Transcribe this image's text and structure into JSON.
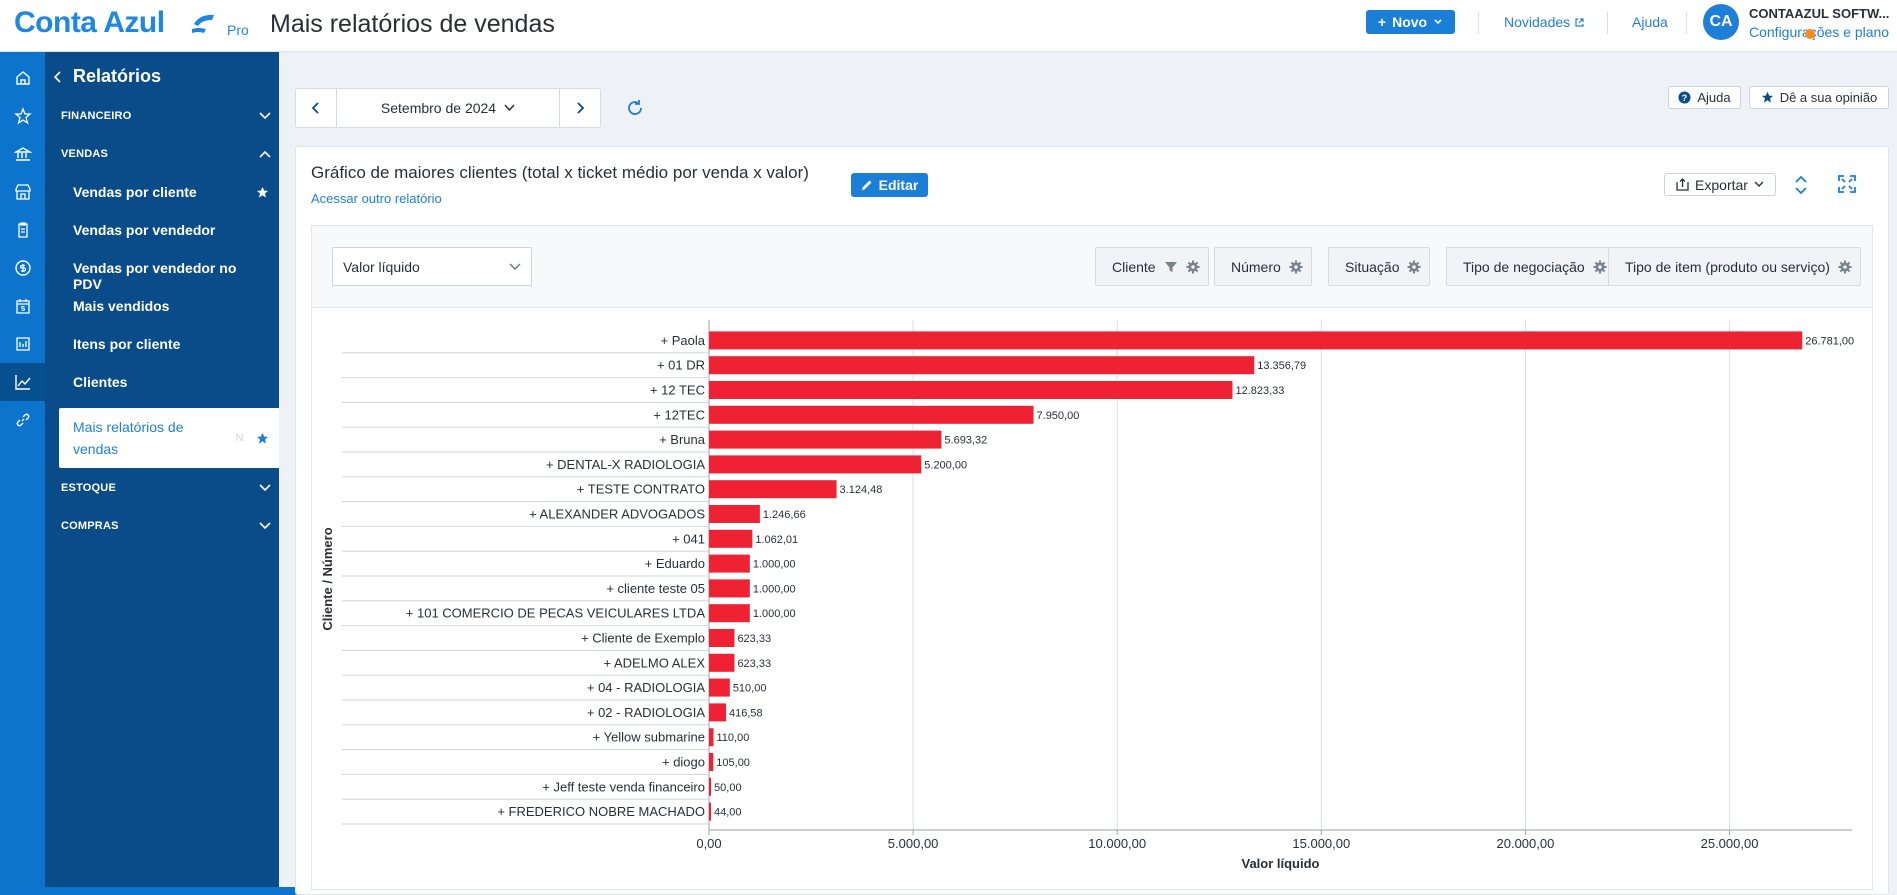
{
  "header": {
    "logo": "Conta Azul",
    "logo_badge": "Pro",
    "page_title": "Mais relatórios de vendas",
    "new_button": "Novo",
    "news_link": "Novidades",
    "help_link": "Ajuda",
    "avatar_initials": "CA",
    "company_name": "CONTAAZUL SOFTW...",
    "settings_link": "Configurações e plano"
  },
  "sidebar": {
    "back_label": "Relatórios",
    "sections": [
      {
        "label": "FINANCEIRO",
        "expanded": false
      },
      {
        "label": "VENDAS",
        "expanded": true
      },
      {
        "label": "ESTOQUE",
        "expanded": false
      },
      {
        "label": "COMPRAS",
        "expanded": false
      }
    ],
    "items": [
      {
        "label": "Vendas por cliente",
        "starred": true
      },
      {
        "label": "Vendas por vendedor"
      },
      {
        "label": "Vendas por vendedor no PDV"
      },
      {
        "label": "Mais vendidos"
      },
      {
        "label": "Itens por cliente"
      },
      {
        "label": "Clientes"
      },
      {
        "label": "Mais relatórios de vendas",
        "starred": true,
        "active": true,
        "badge": "N"
      }
    ]
  },
  "toolbar": {
    "period": "Setembro de 2024",
    "help_button": "Ajuda",
    "feedback_button": "Dê a sua opinião"
  },
  "report": {
    "title": "Gráfico de maiores clientes (total x ticket médio por venda x valor)",
    "other_report_link": "Acessar outro relatório",
    "edit_button": "Editar",
    "export_button": "Exportar",
    "metric_select": "Valor líquido",
    "filters": [
      "Cliente",
      "Número",
      "Situação",
      "Tipo de negociação",
      "Tipo de item (produto ou serviço)"
    ]
  },
  "chart_data": {
    "type": "bar",
    "orientation": "horizontal",
    "categories": [
      "+ Paola",
      "+ 01 DR",
      "+ 12 TEC",
      "+ 12TEC",
      "+ Bruna",
      "+ DENTAL-X RADIOLOGIA",
      "+ TESTE CONTRATO",
      "+ ALEXANDER ADVOGADOS",
      "+ 041",
      "+ Eduardo",
      "+ cliente teste 05",
      "+ 101 COMERCIO DE PECAS VEICULARES LTDA",
      "+ Cliente de Exemplo",
      "+ ADELMO ALEX",
      "+ 04 - RADIOLOGIA",
      "+ 02 - RADIOLOGIA",
      "+ Yellow submarine",
      "+ diogo",
      "+ Jeff teste venda financeiro",
      "+ FREDERICO NOBRE MACHADO"
    ],
    "values": [
      26781.0,
      13356.79,
      12823.33,
      7950.0,
      5693.32,
      5200.0,
      3124.48,
      1246.66,
      1062.01,
      1000.0,
      1000.0,
      1000.0,
      623.33,
      623.33,
      510.0,
      416.58,
      110.0,
      105.0,
      50.0,
      44.0
    ],
    "value_labels": [
      "26.781,00",
      "13.356,79",
      "12.823,33",
      "7.950,00",
      "5.693,32",
      "5.200,00",
      "3.124,48",
      "1.246,66",
      "1.062,01",
      "1.000,00",
      "1.000,00",
      "1.000,00",
      "623,33",
      "623,33",
      "510,00",
      "416,58",
      "110,00",
      "105,00",
      "50,00",
      "44,00"
    ],
    "xlabel": "Valor líquido",
    "ylabel": "Cliente / Número",
    "xlim": [
      0,
      28000
    ],
    "x_ticks": [
      0,
      5000,
      10000,
      15000,
      20000,
      25000
    ],
    "x_tick_labels": [
      "0,00",
      "5.000,00",
      "10.000,00",
      "15.000,00",
      "20.000,00",
      "25.000,00"
    ],
    "grid": true,
    "bar_color": "#ee2233"
  },
  "colors": {
    "brand": "#1e87e0",
    "sidebar": "#0a4c8a",
    "rail": "#0c74cc",
    "accent_button": "#1b7fd8"
  }
}
